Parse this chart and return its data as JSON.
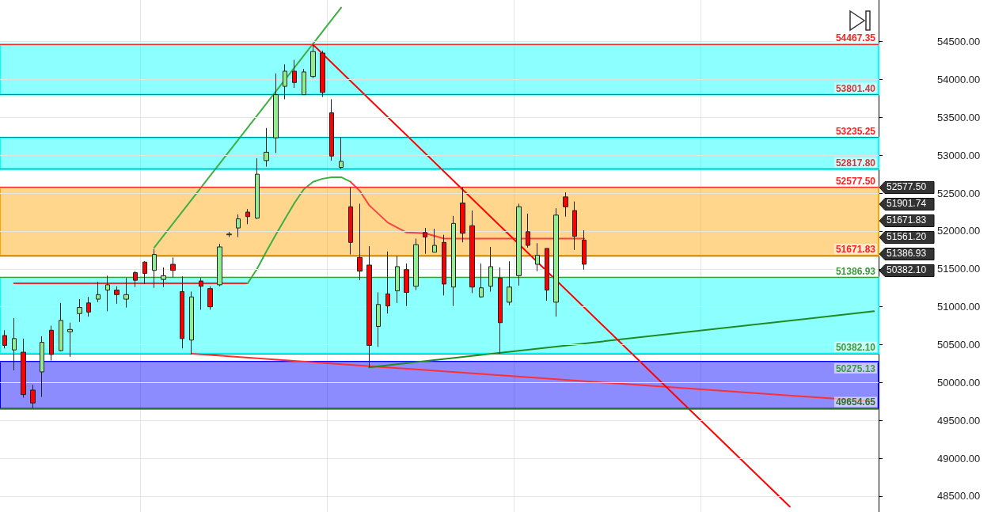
{
  "chart_data": {
    "type": "candlestick",
    "categories": [
      null,
      null,
      null,
      null,
      null,
      null,
      null,
      null,
      null,
      null,
      null,
      null,
      null,
      null,
      null,
      null,
      null,
      null,
      null,
      null,
      null,
      null,
      null,
      null,
      null,
      null,
      null,
      null,
      null,
      null,
      null,
      null,
      null,
      null,
      null,
      null,
      null,
      null,
      null,
      null,
      null,
      null,
      null,
      null,
      null,
      null,
      null,
      null,
      null,
      null,
      null,
      null,
      null,
      null,
      null,
      null,
      null,
      null,
      null,
      null,
      null,
      null,
      null,
      null,
      null,
      null,
      null,
      null,
      null,
      null,
      null,
      null,
      null,
      null,
      null,
      null,
      null,
      null,
      null,
      null,
      null,
      null,
      null,
      null,
      null,
      null,
      null,
      null,
      null,
      null,
      null,
      null,
      null,
      null
    ],
    "ohlc": [
      [
        50620,
        50690,
        50450,
        50490
      ],
      [
        50430,
        50850,
        50160,
        50580
      ],
      [
        50400,
        50580,
        49800,
        49840
      ],
      [
        49900,
        49970,
        49660,
        49730
      ],
      [
        50140,
        50610,
        49810,
        50530
      ],
      [
        50690,
        50750,
        50290,
        50370
      ],
      [
        50420,
        51050,
        50410,
        50820
      ],
      [
        50670,
        50790,
        50340,
        50700
      ],
      [
        50910,
        51100,
        50800,
        50990
      ],
      [
        51050,
        51130,
        50870,
        50930
      ],
      [
        51100,
        51330,
        51060,
        51160
      ],
      [
        51220,
        51410,
        50940,
        51290
      ],
      [
        51220,
        51270,
        51040,
        51160
      ],
      [
        51100,
        51380,
        50990,
        51160
      ],
      [
        51450,
        51470,
        51260,
        51350
      ],
      [
        51590,
        51600,
        51300,
        51440
      ],
      [
        51480,
        51760,
        51250,
        51690
      ],
      [
        51360,
        51520,
        51260,
        51410
      ],
      [
        51560,
        51650,
        51390,
        51480
      ],
      [
        51200,
        51400,
        50450,
        50580
      ],
      [
        50560,
        51200,
        50370,
        51130
      ],
      [
        51340,
        51380,
        50960,
        51270
      ],
      [
        51240,
        51270,
        50960,
        51000
      ],
      [
        51290,
        51830,
        51270,
        51790
      ],
      [
        51950,
        51990,
        51920,
        51960
      ],
      [
        52040,
        52220,
        51920,
        52160
      ],
      [
        52250,
        52290,
        52090,
        52190
      ],
      [
        52170,
        52960,
        52160,
        52750
      ],
      [
        52930,
        53360,
        52850,
        53040
      ],
      [
        53230,
        54080,
        53030,
        53800
      ],
      [
        53910,
        54200,
        53740,
        54110
      ],
      [
        54110,
        54260,
        53890,
        53960
      ],
      [
        53800,
        54140,
        53800,
        54100
      ],
      [
        54040,
        54467.35,
        54020,
        54370
      ],
      [
        54350,
        54380,
        53770,
        53830
      ],
      [
        53560,
        53740,
        52930,
        52990
      ],
      [
        52840,
        53235.25,
        52817.8,
        52920
      ],
      [
        52320,
        52577.5,
        51690,
        51850
      ],
      [
        51650,
        52360,
        51350,
        51470
      ],
      [
        51550,
        51800,
        50200,
        50490
      ],
      [
        50740,
        51190,
        50470,
        51030
      ],
      [
        51170,
        51730,
        50910,
        51010
      ],
      [
        51210,
        51670,
        51050,
        51530
      ],
      [
        51490,
        51570,
        51010,
        51190
      ],
      [
        51270,
        51900,
        51220,
        51820
      ],
      [
        51980,
        52040,
        51700,
        51920
      ],
      [
        51720,
        52030,
        51720,
        51810
      ],
      [
        51850,
        51950,
        51150,
        51300
      ],
      [
        51260,
        52200,
        51010,
        52100
      ],
      [
        52370,
        52577.5,
        51850,
        51970
      ],
      [
        52070,
        52270,
        51180,
        51260
      ],
      [
        51130,
        51570,
        51120,
        51250
      ],
      [
        51270,
        51790,
        51200,
        51530
      ],
      [
        51380,
        51520,
        50382.1,
        50790
      ],
      [
        51060,
        51600,
        51020,
        51260
      ],
      [
        51410,
        52360,
        51280,
        52320
      ],
      [
        51990,
        52230,
        51780,
        51810
      ],
      [
        51560,
        51840,
        51470,
        51680
      ],
      [
        51770,
        51770,
        51080,
        51220
      ],
      [
        51060,
        52300,
        50870,
        52210
      ],
      [
        52450,
        52510,
        52190,
        52320
      ],
      [
        52270,
        52390,
        51750,
        51930
      ],
      [
        51880,
        52010,
        51490,
        51561.2
      ],
      null,
      null,
      null,
      null,
      null,
      null,
      null,
      null,
      null,
      null,
      null,
      null,
      null,
      null,
      null,
      null,
      null,
      null,
      null,
      null,
      null,
      null,
      null,
      null,
      null,
      null,
      null,
      null,
      null,
      null,
      null
    ],
    "series": [
      {
        "type": "line",
        "color": "#f02828",
        "values": [
          null,
          51310,
          null,
          null,
          null,
          null,
          null,
          null,
          null,
          null,
          null,
          null,
          null,
          null,
          null,
          null,
          null,
          null,
          null,
          null,
          null,
          null,
          null,
          null,
          null,
          null,
          51310,
          null,
          null,
          null,
          null,
          null,
          null,
          null,
          null,
          null,
          null,
          null,
          null,
          null,
          null,
          null,
          null,
          null,
          null,
          null,
          null,
          null,
          null,
          null,
          null,
          null,
          null,
          null,
          null,
          null,
          null,
          null,
          null,
          null,
          null,
          null,
          null,
          null,
          null,
          null,
          null,
          null,
          null,
          null,
          null,
          null,
          null,
          null,
          null,
          null,
          null,
          null,
          null,
          null,
          null,
          null,
          null,
          null,
          null,
          null,
          null,
          null,
          null,
          null,
          null,
          null,
          null,
          null
        ]
      },
      {
        "type": "line",
        "color": "#3cb043",
        "values": [
          null,
          null,
          null,
          null,
          null,
          null,
          null,
          null,
          null,
          null,
          null,
          null,
          null,
          null,
          null,
          null,
          null,
          null,
          null,
          null,
          null,
          null,
          null,
          null,
          null,
          null,
          51310,
          51500,
          51730,
          51950,
          52160,
          52370,
          52550,
          52650,
          52690,
          52710,
          52710,
          52650,
          null,
          null,
          null,
          null,
          null,
          null,
          null,
          null,
          null,
          null,
          null,
          null,
          null,
          null,
          null,
          null,
          null,
          null,
          null,
          null,
          null,
          null,
          null,
          null,
          null,
          null,
          null,
          null,
          null,
          null,
          null,
          null,
          null,
          null,
          null,
          null,
          null,
          null,
          null,
          null,
          null,
          null,
          null,
          null,
          null,
          null,
          null,
          null,
          null,
          null,
          null,
          null,
          null,
          null,
          null,
          null
        ]
      },
      {
        "type": "line",
        "color": "#ff4040",
        "values": [
          null,
          null,
          null,
          null,
          null,
          null,
          null,
          null,
          null,
          null,
          null,
          null,
          null,
          null,
          null,
          null,
          null,
          null,
          null,
          null,
          null,
          null,
          null,
          null,
          null,
          null,
          null,
          null,
          null,
          null,
          null,
          null,
          null,
          null,
          null,
          null,
          null,
          52650,
          52530,
          52340,
          null,
          52110,
          null,
          51980,
          null,
          51970,
          null,
          51900,
          null,
          null,
          null,
          null,
          null,
          null,
          null,
          null,
          null,
          null,
          null,
          null,
          null,
          null,
          51900,
          null,
          null,
          null,
          null,
          null,
          null,
          null,
          null,
          null,
          null,
          null,
          null,
          null,
          null,
          null,
          null,
          null,
          null,
          null,
          null,
          null,
          null,
          null,
          null,
          null,
          null,
          null,
          null,
          null,
          null,
          null
        ]
      },
      {
        "type": "line",
        "color": "#3cb043",
        "values": [
          null,
          null,
          null,
          null,
          null,
          null,
          null,
          null,
          null,
          null,
          null,
          null,
          null,
          null,
          null,
          null,
          51780,
          null,
          null,
          null,
          null,
          null,
          null,
          null,
          null,
          null,
          null,
          null,
          null,
          null,
          null,
          null,
          null,
          null,
          null,
          null,
          54950,
          null,
          null,
          null,
          null,
          null,
          null,
          null,
          null,
          null,
          null,
          null,
          null,
          null,
          null,
          null,
          null,
          null,
          null,
          null,
          null,
          null,
          null,
          null,
          null,
          null,
          null,
          null,
          null,
          null,
          null,
          null,
          null,
          null,
          null,
          null,
          null,
          null,
          null,
          null,
          null,
          null,
          null,
          null,
          null,
          null,
          null,
          null,
          null,
          null,
          null,
          null,
          null,
          null,
          null,
          null,
          null,
          null
        ]
      },
      {
        "type": "line",
        "color": "#ff3030",
        "values": [
          null,
          null,
          null,
          null,
          null,
          null,
          null,
          null,
          null,
          null,
          null,
          null,
          null,
          null,
          null,
          null,
          null,
          null,
          null,
          null,
          50380,
          null,
          null,
          null,
          null,
          null,
          null,
          null,
          null,
          null,
          null,
          null,
          null,
          null,
          null,
          null,
          null,
          null,
          null,
          null,
          null,
          null,
          null,
          null,
          null,
          null,
          null,
          null,
          null,
          null,
          null,
          null,
          null,
          null,
          null,
          null,
          null,
          null,
          null,
          null,
          null,
          null,
          null,
          null,
          null,
          null,
          null,
          null,
          null,
          null,
          null,
          null,
          null,
          null,
          null,
          null,
          null,
          null,
          null,
          null,
          null,
          null,
          null,
          null,
          null,
          null,
          null,
          null,
          null,
          null,
          null,
          null,
          null,
          49750
        ]
      },
      {
        "type": "line",
        "color": "#1f8a1f",
        "values": [
          null,
          null,
          null,
          null,
          null,
          null,
          null,
          null,
          null,
          null,
          null,
          null,
          null,
          null,
          null,
          null,
          null,
          null,
          null,
          null,
          null,
          null,
          null,
          null,
          null,
          null,
          null,
          null,
          null,
          null,
          null,
          null,
          null,
          null,
          null,
          null,
          null,
          null,
          null,
          50200,
          null,
          null,
          null,
          null,
          null,
          null,
          null,
          null,
          null,
          null,
          null,
          null,
          null,
          null,
          null,
          null,
          null,
          null,
          null,
          null,
          null,
          null,
          null,
          null,
          null,
          null,
          null,
          null,
          null,
          null,
          null,
          null,
          null,
          null,
          null,
          null,
          null,
          null,
          null,
          null,
          null,
          null,
          null,
          null,
          null,
          null,
          null,
          null,
          null,
          null,
          null,
          null,
          null,
          50940
        ]
      },
      {
        "type": "line",
        "color": "#ff0000",
        "values": [
          null,
          null,
          null,
          null,
          null,
          null,
          null,
          null,
          null,
          null,
          null,
          null,
          null,
          null,
          null,
          null,
          null,
          null,
          null,
          null,
          null,
          null,
          null,
          null,
          null,
          null,
          null,
          null,
          null,
          null,
          null,
          null,
          null,
          54460,
          null,
          null,
          null,
          null,
          null,
          null,
          null,
          null,
          null,
          null,
          null,
          null,
          null,
          null,
          null,
          null,
          null,
          null,
          null,
          null,
          null,
          null,
          null,
          null,
          null,
          null,
          null,
          null,
          null,
          null,
          null,
          null,
          null,
          null,
          null,
          null,
          null,
          null,
          null,
          null,
          null,
          null,
          null,
          null,
          null,
          null,
          null,
          null,
          null,
          null,
          48360,
          null,
          null,
          null,
          null,
          null,
          null,
          null,
          null,
          null
        ]
      }
    ],
    "ylim": [
      48290,
      55050
    ],
    "yticks": [
      {
        "value": 48500,
        "label": "48500.00"
      },
      {
        "value": 49000,
        "label": "49000.00"
      },
      {
        "value": 49500,
        "label": "49500.00"
      },
      {
        "value": 50000,
        "label": "50000.00"
      },
      {
        "value": 50500,
        "label": "50500.00"
      },
      {
        "value": 51000,
        "label": "51000.00"
      },
      {
        "value": 51500,
        "label": "51500.00"
      },
      {
        "value": 52000,
        "label": "52000.00"
      },
      {
        "value": 52500,
        "label": "52500.00"
      },
      {
        "value": 53000,
        "label": "53000.00"
      },
      {
        "value": 53500,
        "label": "53500.00"
      },
      {
        "value": 54000,
        "label": "54000.00"
      },
      {
        "value": 54500,
        "label": "54500.00"
      }
    ],
    "bands": [
      {
        "axis": "y",
        "from": 53801.4,
        "to": 54467.35,
        "color": "#00ffff"
      },
      {
        "axis": "y",
        "from": 52817.8,
        "to": 53235.25,
        "color": "#00ffff"
      },
      {
        "axis": "y",
        "from": 51671.83,
        "to": 52577.5,
        "color": "#ffa500"
      },
      {
        "axis": "y",
        "from": 50382.1,
        "to": 51386.93,
        "color": "#00ffff"
      },
      {
        "axis": "y",
        "from": 49654.65,
        "to": 50275.13,
        "color": "#0000ff"
      }
    ],
    "ref_lines": [
      {
        "axis": "y",
        "value": 54467.35,
        "label": "54467.35",
        "color": "#ff2020"
      },
      {
        "axis": "y",
        "value": 53801.4,
        "label": "53801.40",
        "color": "#d03838"
      },
      {
        "axis": "y",
        "value": 53235.25,
        "label": "53235.25",
        "color": "#ff2020"
      },
      {
        "axis": "y",
        "value": 52817.8,
        "label": "52817.80",
        "color": "#d03838"
      },
      {
        "axis": "y",
        "value": 52577.5,
        "label": "52577.50",
        "color": "#ff2020"
      },
      {
        "axis": "y",
        "value": 51671.83,
        "label": "51671.83",
        "color": "#ff2020"
      },
      {
        "axis": "y",
        "value": 51386.93,
        "label": "51386.93",
        "color": "#3a9a3a"
      },
      {
        "axis": "y",
        "value": 50382.1,
        "label": "50382.10",
        "color": "#3a9a3a"
      },
      {
        "axis": "y",
        "value": 50275.13,
        "label": "50275.13",
        "color": "#3a9a3a"
      },
      {
        "axis": "y",
        "value": 49654.65,
        "label": "49654.65",
        "color": "#2f6f2f"
      }
    ],
    "annotations": [
      "52577.50",
      "51901.74",
      "51671.83",
      "51561.20",
      "51386.93",
      "50382.10"
    ],
    "grid": true,
    "tick_labels": "y",
    "marker": "none",
    "line_style": "solid"
  }
}
